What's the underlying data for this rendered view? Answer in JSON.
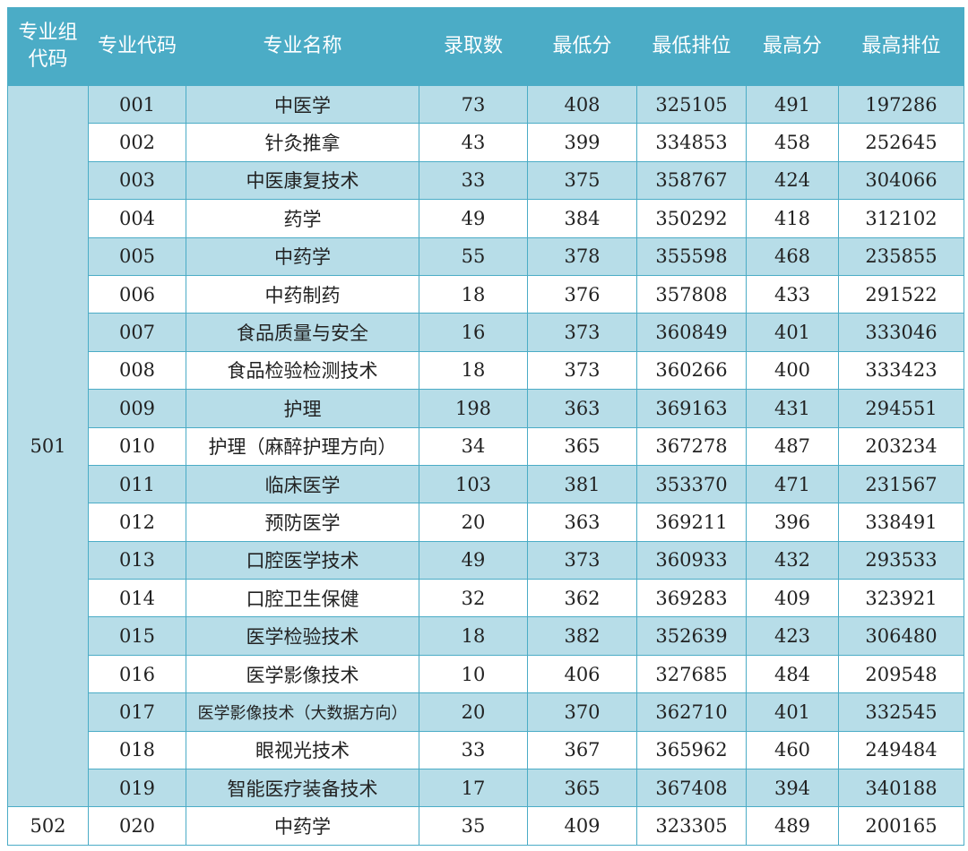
{
  "header": [
    "专业组代码",
    "专业代码",
    "专业名称",
    "录取数",
    "最低分",
    "最低排位",
    "最高分",
    "最高排位"
  ],
  "groups": [
    {
      "code": "501",
      "rows": [
        [
          "001",
          "中医学",
          73,
          408,
          325105,
          491,
          197286
        ],
        [
          "002",
          "针灸推拿",
          43,
          399,
          334853,
          458,
          252645
        ],
        [
          "003",
          "中医康复技术",
          33,
          375,
          358767,
          424,
          304066
        ],
        [
          "004",
          "药学",
          49,
          384,
          350292,
          418,
          312102
        ],
        [
          "005",
          "中药学",
          55,
          378,
          355598,
          468,
          235855
        ],
        [
          "006",
          "中药制药",
          18,
          376,
          357808,
          433,
          291522
        ],
        [
          "007",
          "食品质量与安全",
          16,
          373,
          360849,
          401,
          333046
        ],
        [
          "008",
          "食品检验检测技术",
          18,
          373,
          360266,
          400,
          333423
        ],
        [
          "009",
          "护理",
          198,
          363,
          369163,
          431,
          294551
        ],
        [
          "010",
          "护理（麻醉护理方向）",
          34,
          365,
          367278,
          487,
          203234
        ],
        [
          "011",
          "临床医学",
          103,
          381,
          353370,
          471,
          231567
        ],
        [
          "012",
          "预防医学",
          20,
          363,
          369211,
          396,
          338491
        ],
        [
          "013",
          "口腔医学技术",
          49,
          373,
          360933,
          432,
          293533
        ],
        [
          "014",
          "口腔卫生保健",
          32,
          362,
          369283,
          409,
          323921
        ],
        [
          "015",
          "医学检验技术",
          18,
          382,
          352639,
          423,
          306480
        ],
        [
          "016",
          "医学影像技术",
          10,
          406,
          327685,
          484,
          209548
        ],
        [
          "017",
          "医学影像技术（大数据方向）",
          20,
          370,
          362710,
          401,
          332545
        ],
        [
          "018",
          "眼视光技术",
          33,
          367,
          365962,
          460,
          249484
        ],
        [
          "019",
          "智能医疗装备技术",
          17,
          365,
          367408,
          394,
          340188
        ]
      ]
    },
    {
      "code": "502",
      "rows": [
        [
          "020",
          "中药学",
          35,
          409,
          323305,
          489,
          200165
        ]
      ]
    }
  ]
}
